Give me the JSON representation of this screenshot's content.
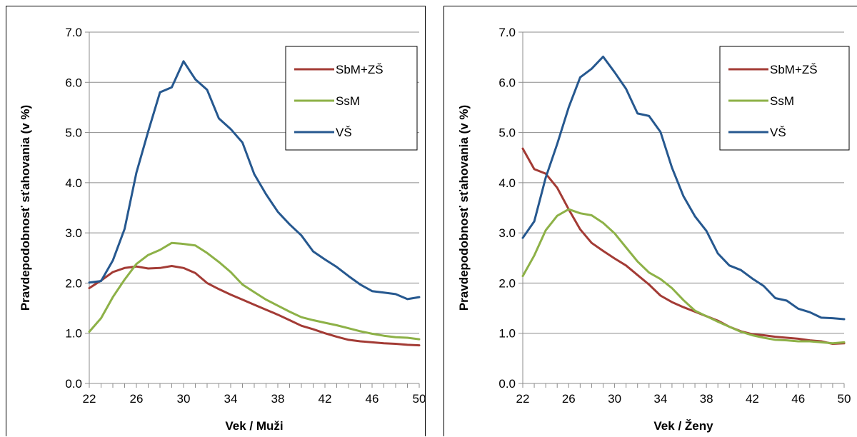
{
  "chart_data": [
    {
      "type": "line",
      "xlabel": "Vek / Muži",
      "ylabel": "Pravdepodobnosť sťahovania (v %)",
      "ylim": [
        0,
        7
      ],
      "xlim": [
        22,
        50
      ],
      "yticks": [
        "0.0",
        "1.0",
        "2.0",
        "3.0",
        "4.0",
        "5.0",
        "6.0",
        "7.0"
      ],
      "xticks": [
        "22",
        "26",
        "30",
        "34",
        "38",
        "42",
        "46",
        "50"
      ],
      "grid": "horizontal",
      "legend_position": "top-right",
      "x": [
        22,
        23,
        24,
        25,
        26,
        27,
        28,
        29,
        30,
        31,
        32,
        33,
        34,
        35,
        36,
        37,
        38,
        39,
        40,
        41,
        42,
        43,
        44,
        45,
        46,
        47,
        48,
        49,
        50
      ],
      "series": [
        {
          "name": "SbM+ZŠ",
          "color": "#a33b35",
          "values": [
            1.9,
            2.05,
            2.22,
            2.3,
            2.33,
            2.29,
            2.3,
            2.34,
            2.3,
            2.2,
            2.0,
            1.88,
            1.77,
            1.67,
            1.57,
            1.47,
            1.37,
            1.26,
            1.15,
            1.08,
            1.0,
            0.93,
            0.87,
            0.84,
            0.82,
            0.8,
            0.79,
            0.77,
            0.76
          ]
        },
        {
          "name": "SsM",
          "color": "#8db147",
          "values": [
            1.03,
            1.3,
            1.72,
            2.07,
            2.38,
            2.56,
            2.66,
            2.8,
            2.78,
            2.75,
            2.6,
            2.42,
            2.22,
            1.97,
            1.82,
            1.67,
            1.55,
            1.43,
            1.32,
            1.26,
            1.21,
            1.16,
            1.1,
            1.04,
            0.99,
            0.95,
            0.92,
            0.91,
            0.88
          ]
        },
        {
          "name": "VŠ",
          "color": "#26588f",
          "values": [
            2.01,
            2.04,
            2.45,
            3.08,
            4.2,
            5.02,
            5.8,
            5.9,
            6.42,
            6.06,
            5.85,
            5.28,
            5.07,
            4.8,
            4.17,
            3.77,
            3.42,
            3.17,
            2.95,
            2.63,
            2.47,
            2.32,
            2.14,
            1.97,
            1.84,
            1.81,
            1.78,
            1.68,
            1.72
          ]
        }
      ]
    },
    {
      "type": "line",
      "xlabel": "Vek / Ženy",
      "ylabel": "Pravdepodobnosť sťahovania (v %)",
      "ylim": [
        0,
        7
      ],
      "xlim": [
        22,
        50
      ],
      "yticks": [
        "0.0",
        "1.0",
        "2.0",
        "3.0",
        "4.0",
        "5.0",
        "6.0",
        "7.0"
      ],
      "xticks": [
        "22",
        "26",
        "30",
        "34",
        "38",
        "42",
        "46",
        "50"
      ],
      "grid": "horizontal",
      "legend_position": "top-right",
      "x": [
        22,
        23,
        24,
        25,
        26,
        27,
        28,
        29,
        30,
        31,
        32,
        33,
        34,
        35,
        36,
        37,
        38,
        39,
        40,
        41,
        42,
        43,
        44,
        45,
        46,
        47,
        48,
        49,
        50
      ],
      "series": [
        {
          "name": "SbM+ZŠ",
          "color": "#a33b35",
          "values": [
            4.68,
            4.27,
            4.18,
            3.9,
            3.47,
            3.07,
            2.8,
            2.64,
            2.49,
            2.35,
            2.16,
            1.97,
            1.75,
            1.62,
            1.52,
            1.43,
            1.34,
            1.25,
            1.13,
            1.04,
            0.98,
            0.96,
            0.93,
            0.91,
            0.89,
            0.86,
            0.84,
            0.79,
            0.8
          ]
        },
        {
          "name": "SsM",
          "color": "#8db147",
          "values": [
            2.14,
            2.55,
            3.05,
            3.34,
            3.47,
            3.39,
            3.35,
            3.2,
            2.99,
            2.71,
            2.43,
            2.21,
            2.08,
            1.9,
            1.66,
            1.45,
            1.34,
            1.23,
            1.13,
            1.03,
            0.96,
            0.91,
            0.87,
            0.86,
            0.84,
            0.84,
            0.82,
            0.8,
            0.82
          ]
        },
        {
          "name": "VŠ",
          "color": "#26588f",
          "values": [
            2.9,
            3.23,
            4.1,
            4.77,
            5.5,
            6.1,
            6.27,
            6.51,
            6.2,
            5.87,
            5.38,
            5.33,
            5.01,
            4.3,
            3.73,
            3.33,
            3.04,
            2.59,
            2.35,
            2.26,
            2.09,
            1.94,
            1.7,
            1.65,
            1.49,
            1.42,
            1.31,
            1.3,
            1.28
          ]
        }
      ]
    }
  ]
}
